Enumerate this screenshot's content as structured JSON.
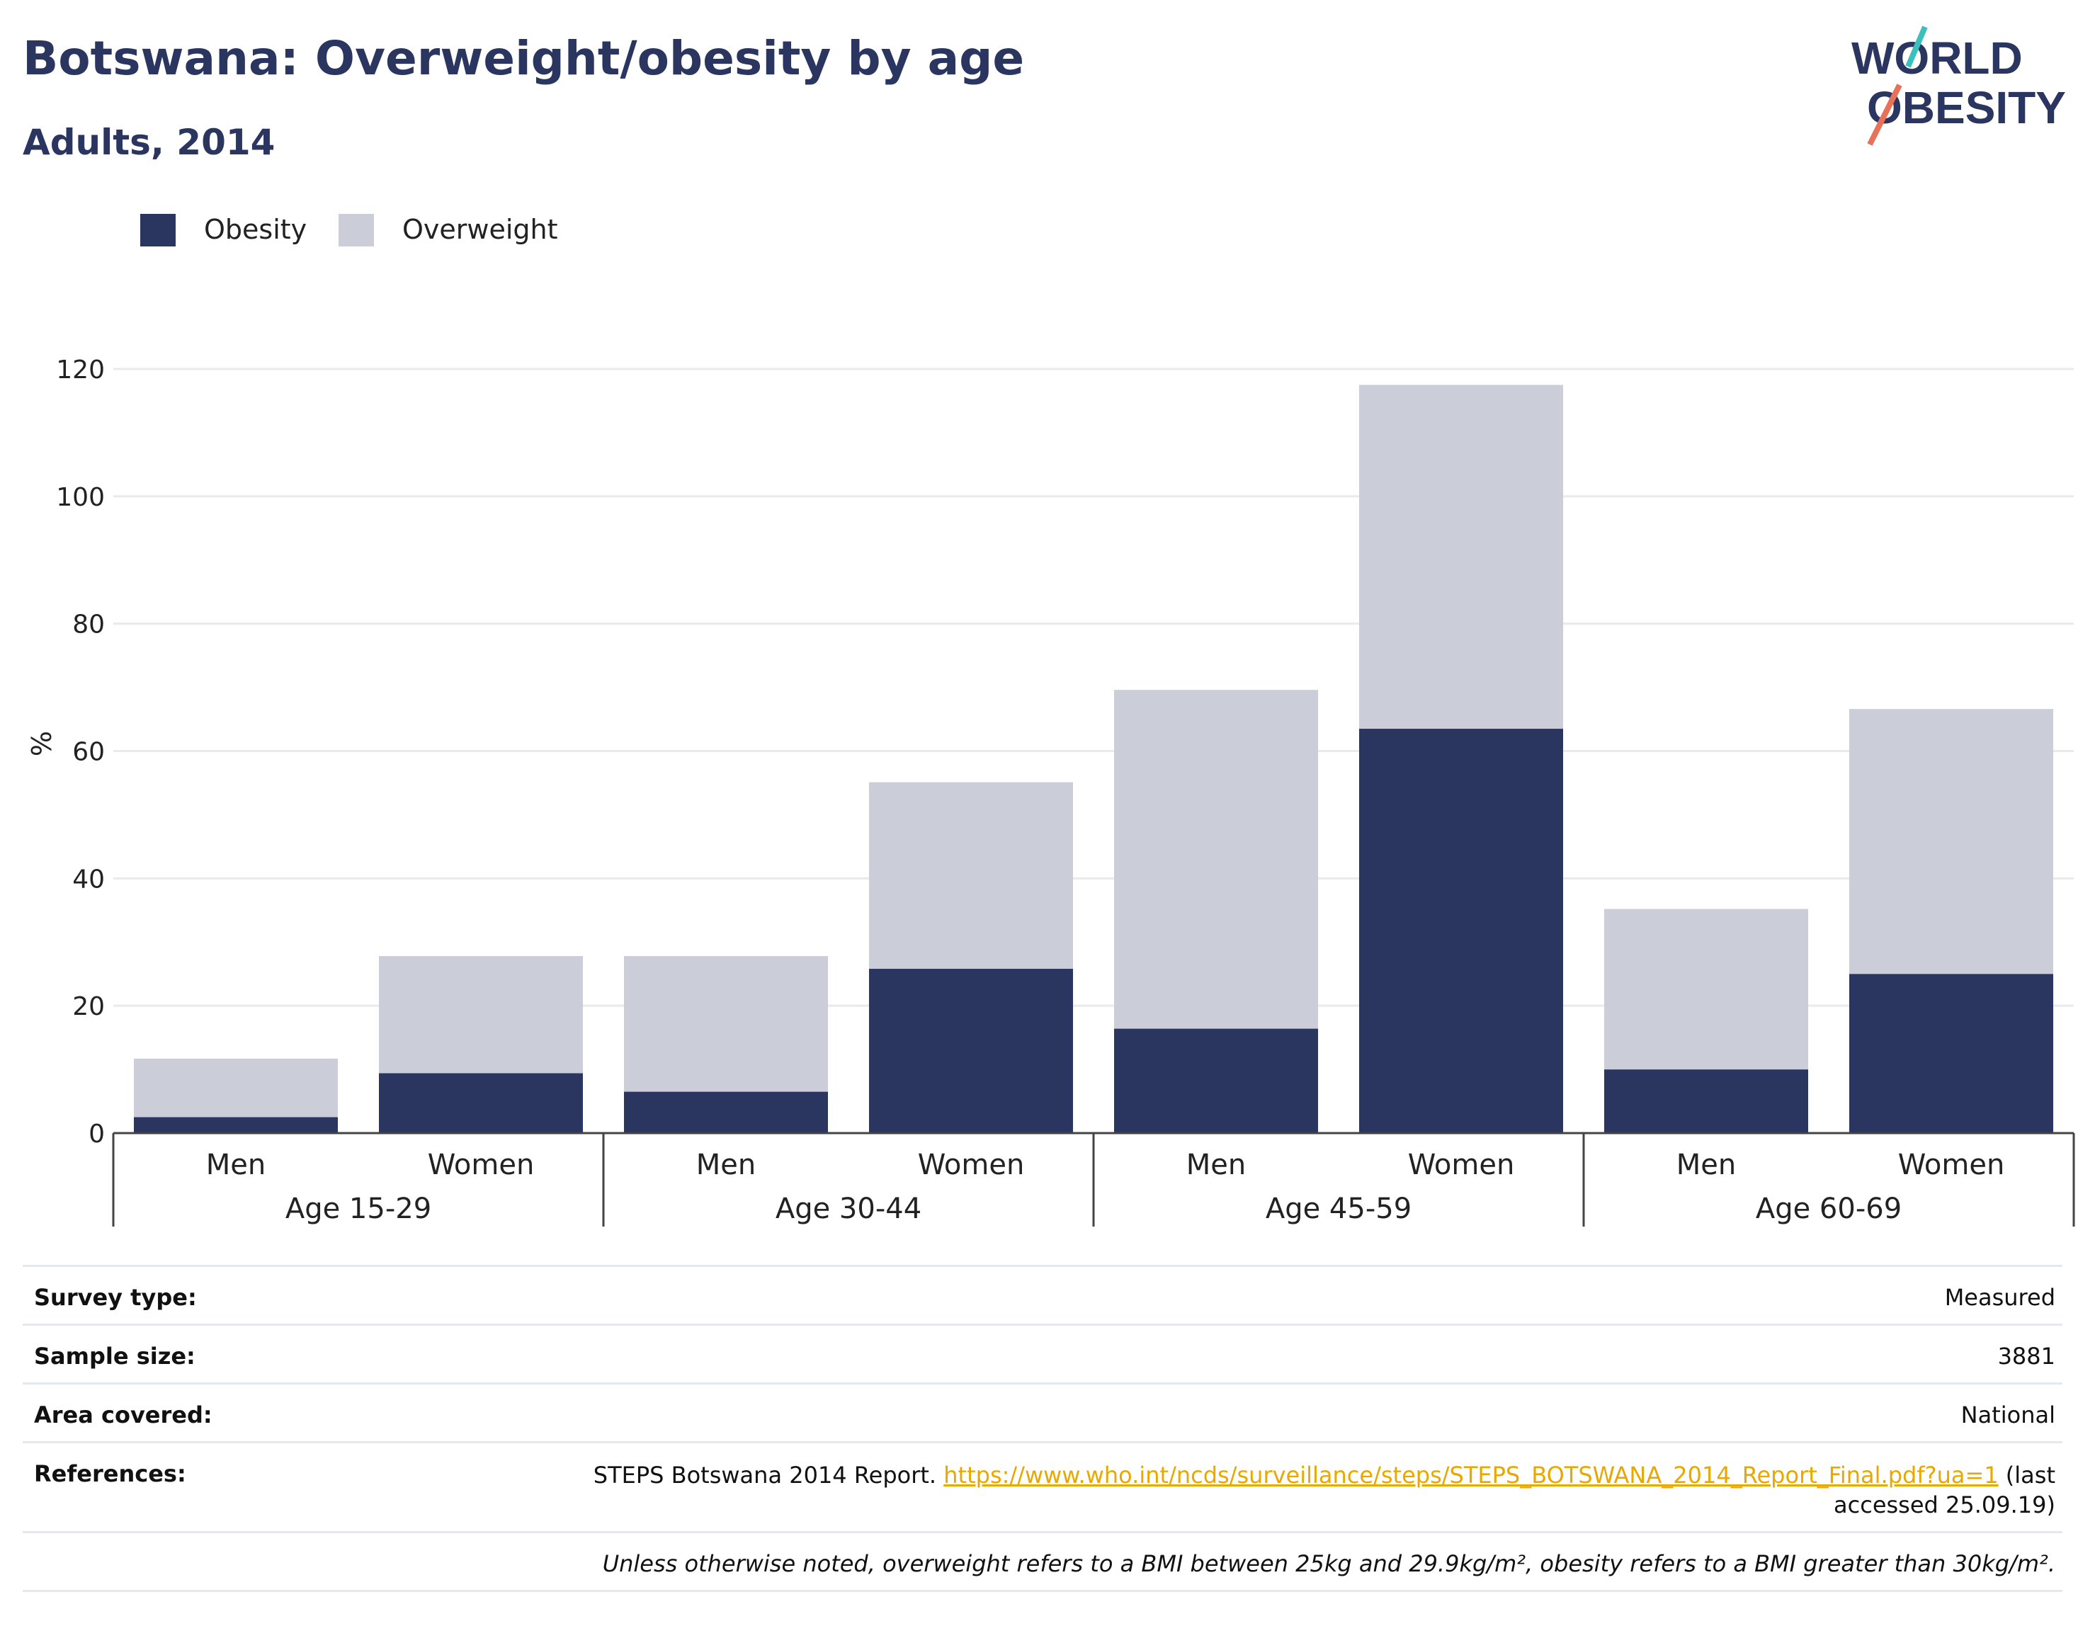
{
  "header": {
    "title": "Botswana: Overweight/obesity by age",
    "subtitle": "Adults, 2014"
  },
  "logo": {
    "line1": "WORLD",
    "line2": "OBESITY"
  },
  "colors": {
    "obesity": "#2a3560",
    "overweight": "#cbcdd8",
    "title": "#2a3560",
    "grid": "#e9e9ee",
    "link": "#e8a800"
  },
  "chart_data": {
    "type": "bar",
    "stacked": true,
    "ylabel": "%",
    "ylim": [
      0,
      120
    ],
    "yticks": [
      0,
      20,
      40,
      60,
      80,
      100,
      120
    ],
    "grid": true,
    "legend_position": "top-left",
    "groups": [
      "Age 15-29",
      "Age 30-44",
      "Age 45-59",
      "Age 60-69"
    ],
    "categories": [
      "Men",
      "Women",
      "Men",
      "Women",
      "Men",
      "Women",
      "Men",
      "Women"
    ],
    "series": [
      {
        "name": "Obesity",
        "values": [
          2.5,
          9.4,
          6.5,
          25.8,
          16.4,
          63.5,
          10.0,
          25.0
        ]
      },
      {
        "name": "Overweight",
        "values": [
          9.2,
          18.4,
          21.3,
          29.3,
          53.2,
          54.0,
          25.2,
          41.6
        ]
      }
    ]
  },
  "meta": {
    "survey_type_label": "Survey type:",
    "survey_type_value": "Measured",
    "sample_size_label": "Sample size:",
    "sample_size_value": "3881",
    "area_label": "Area covered:",
    "area_value": "National",
    "references_label": "References:",
    "references_text": "STEPS Botswana 2014 Report.",
    "references_link": "https://www.who.int/ncds/surveillance/steps/STEPS_BOTSWANA_2014_Report_Final.pdf?ua=1",
    "references_after": "(last",
    "references_after2": "accessed 25.09.19)",
    "note": "Unless otherwise noted, overweight refers to a BMI between 25kg and 29.9kg/m², obesity refers to a BMI greater than 30kg/m²."
  }
}
